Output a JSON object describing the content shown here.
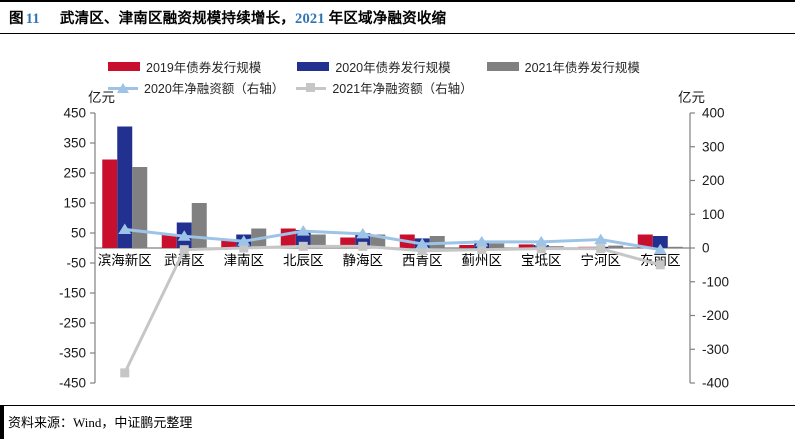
{
  "header": {
    "figure_label": "图",
    "figure_number": "11",
    "title_part1": "武清区、津南区融资规模持续增长，",
    "title_number": "2021",
    "title_part2": " 年区域净融资收缩",
    "accent_color": "#2E74B5"
  },
  "footer": {
    "source": "资料来源：Wind，中证鹏元整理"
  },
  "chart_data": {
    "type": "bar",
    "title": "武清区、津南区融资规模持续增长，2021年区域净融资收缩",
    "categories": [
      "滨海新区",
      "武清区",
      "津南区",
      "北辰区",
      "静海区",
      "西青区",
      "蓟州区",
      "宝坻区",
      "宁河区",
      "东丽区"
    ],
    "bar_series": [
      {
        "name": "2019年债券发行规模",
        "color": "#C8102E",
        "axis": "left",
        "values": [
          295,
          45,
          30,
          65,
          35,
          45,
          10,
          12,
          4,
          45
        ]
      },
      {
        "name": "2020年债券发行规模",
        "color": "#22318F",
        "axis": "left",
        "values": [
          405,
          85,
          45,
          60,
          50,
          32,
          25,
          10,
          4,
          40
        ]
      },
      {
        "name": "2021年债券发行规模",
        "color": "#808080",
        "axis": "left",
        "values": [
          270,
          150,
          65,
          45,
          45,
          40,
          15,
          6,
          8,
          4
        ]
      }
    ],
    "line_series": [
      {
        "name": "2020年净融资额（右轴）",
        "color": "#9DC3E6",
        "marker": "triangle",
        "axis": "right",
        "values": [
          55,
          35,
          20,
          50,
          42,
          12,
          18,
          18,
          25,
          -5
        ]
      },
      {
        "name": "2021年净融资额（右轴）",
        "color": "#C6C6C6",
        "marker": "square",
        "axis": "right",
        "values": [
          -370,
          -5,
          0,
          5,
          5,
          -8,
          -5,
          -2,
          -2,
          -50
        ]
      }
    ],
    "left_axis": {
      "label": "亿元",
      "range": [
        -450,
        450
      ],
      "ticks": [
        450,
        350,
        250,
        150,
        50,
        -50,
        -150,
        -250,
        -350,
        -450
      ]
    },
    "right_axis": {
      "label": "亿元",
      "range": [
        -400,
        400
      ],
      "ticks": [
        400,
        300,
        200,
        100,
        0,
        -100,
        -200,
        -300,
        -400
      ]
    },
    "legend_position": "top",
    "grid": false
  }
}
